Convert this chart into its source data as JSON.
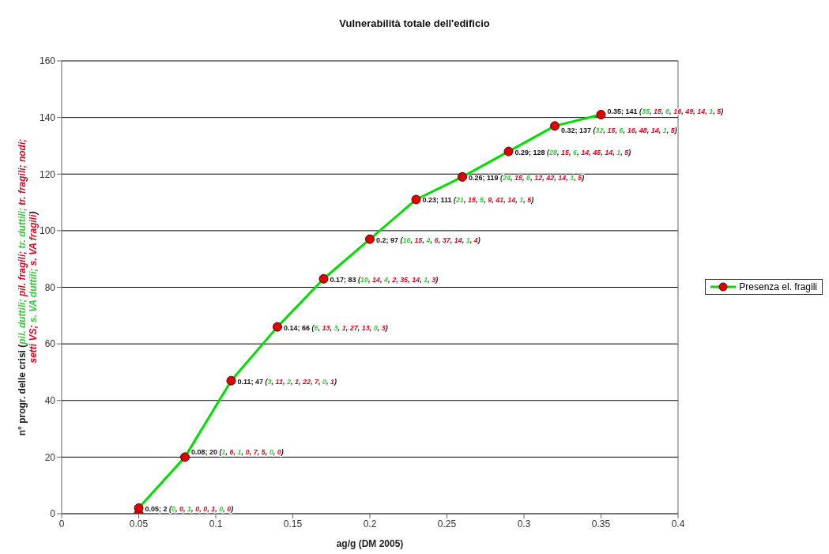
{
  "chart_data": {
    "type": "line",
    "title": "Vulnerabilità totale dell'edificio",
    "xlabel": "ag/g (DM 2005)",
    "ylabel": "n° progr. delle crisi (pil. duttili; pil. fragili; tr. duttili; tr. fragili; nodi; setti VS; s. VA duttili; s. VA fragili)",
    "x": [
      0.05,
      0.05,
      0.08,
      0.11,
      0.14,
      0.17,
      0.2,
      0.23,
      0.26,
      0.29,
      0.32,
      0.35
    ],
    "series": [
      {
        "name": "Presenza el. fragili",
        "color": "#00e000",
        "colors": [
          "#e00000",
          "#e00000",
          "#e00000",
          "#e00000",
          "#e00000",
          "#e00000",
          "#e00000",
          "#e00000",
          "#e00000",
          "#e00000",
          "#e00000",
          "#e00000"
        ],
        "values": [
          0,
          2,
          20,
          47,
          66,
          83,
          97,
          111,
          119,
          128,
          137,
          141
        ],
        "value_labels": [
          null,
          "0.05; 2 (0, 0, 1, 0, 0, 1, 0, 0)",
          "0.08; 20 (1, 6, 1, 0, 7, 5, 0, 0)",
          "0.11; 47 (3, 11, 2, 1, 22, 7, 0, 1)",
          "0.14; 66 (6, 13, 3, 1, 27, 13, 0, 3)",
          "0.17; 83 (10, 14, 4, 2, 35, 14, 1, 3)",
          "0.2; 97 (16, 15, 4, 6, 37, 14, 1, 4)",
          "0.23; 111 (21, 15, 5, 9, 41, 14, 1, 5)",
          "0.26; 119 (24, 15, 6, 12, 42, 14, 1, 5)",
          "0.29; 128 (28, 15, 6, 14, 45, 14, 1, 5)",
          "0.32; 137 (32, 15, 6, 16, 48, 14, 1, 5)",
          "0.35; 141 (35, 15, 6, 16, 49, 14, 1, 5)"
        ]
      }
    ],
    "xlim": [
      0,
      0.4
    ],
    "xticks": [
      0,
      0.05,
      0.1,
      0.15,
      0.2,
      0.25,
      0.3,
      0.35,
      0.4
    ],
    "ylim": [
      0,
      160
    ],
    "yticks": [
      0,
      20,
      40,
      60,
      80,
      100,
      120,
      140,
      160
    ],
    "grid": "y",
    "legend": "right",
    "marker": "circle",
    "line_style": "solid"
  }
}
